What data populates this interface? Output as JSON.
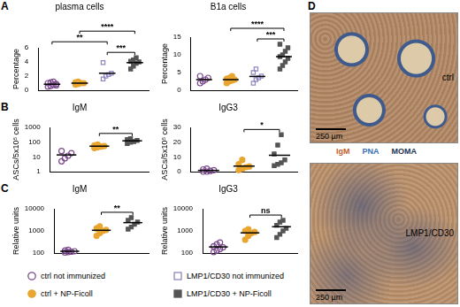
{
  "chart_data": [
    {
      "panel": "A",
      "type": "scatter",
      "title": "plasma cells",
      "y_label": "Percentage",
      "ylim": [
        0,
        6
      ],
      "yticks": [
        0,
        2,
        4,
        6
      ],
      "grid": false,
      "tick_labels": "y",
      "series": [
        {
          "name": "ctrl not immunized",
          "color": "#7b4a8c",
          "marker": "circle-open",
          "values": [
            0.5,
            0.6,
            0.8,
            0.9,
            1.0,
            1.1,
            1.2,
            0.7
          ],
          "mean": 0.85
        },
        {
          "name": "ctrl + NP-Ficoll",
          "color": "#e8a630",
          "marker": "circle",
          "values": [
            0.8,
            0.9,
            1.0,
            1.0,
            1.1,
            1.2
          ],
          "mean": 1.0
        },
        {
          "name": "LMP1/CD30 not immunized",
          "color": "#8e86c0",
          "marker": "square-open",
          "values": [
            1.6,
            2.0,
            2.2,
            2.4,
            3.9
          ],
          "mean": 2.4
        },
        {
          "name": "LMP1/CD30 + NP-Ficoll",
          "color": "#555555",
          "marker": "square",
          "values": [
            3.0,
            3.4,
            3.8,
            4.0,
            4.1,
            4.3,
            4.6
          ],
          "mean": 3.9
        }
      ],
      "annotations": [
        {
          "from": 2,
          "to": 3,
          "label": "***"
        },
        {
          "from": 0,
          "to": 2,
          "label": "**"
        },
        {
          "from": 1,
          "to": 3,
          "label": "****"
        }
      ]
    },
    {
      "panel": "A",
      "type": "scatter",
      "title": "B1a cells",
      "y_label": "Percentage",
      "ylim": [
        0,
        15
      ],
      "yticks": [
        0,
        5,
        10,
        15
      ],
      "grid": false,
      "tick_labels": "y",
      "series": [
        {
          "name": "ctrl not immunized",
          "color": "#7b4a8c",
          "marker": "circle-open",
          "values": [
            2.0,
            2.5,
            3.0,
            3.5,
            4.0
          ],
          "mean": 3.0
        },
        {
          "name": "ctrl + NP-Ficoll",
          "color": "#e8a630",
          "marker": "circle",
          "values": [
            2.0,
            2.5,
            2.8,
            3.0,
            3.2,
            3.5,
            4.0
          ],
          "mean": 3.0
        },
        {
          "name": "LMP1/CD30 not immunized",
          "color": "#8e86c0",
          "marker": "square-open",
          "values": [
            2.0,
            3.0,
            3.5,
            4.0,
            5.0,
            6.0
          ],
          "mean": 3.9
        },
        {
          "name": "LMP1/CD30 + NP-Ficoll",
          "color": "#555555",
          "marker": "square",
          "values": [
            6.0,
            7.0,
            8.0,
            9.0,
            9.5,
            10.0,
            11.0,
            12.0,
            13.0
          ],
          "mean": 9.5
        }
      ],
      "annotations": [
        {
          "from": 2,
          "to": 3,
          "label": "***"
        },
        {
          "from": 1,
          "to": 3,
          "label": "****"
        }
      ]
    },
    {
      "panel": "B",
      "type": "scatter",
      "title": "IgM",
      "y_label": "ASCs/5x10⁵ cells",
      "log": "y",
      "ylim": [
        1,
        1000
      ],
      "yticks": [
        1,
        10,
        100,
        1000
      ],
      "grid": false,
      "tick_labels": "y",
      "series": [
        {
          "name": "ctrl not immunized",
          "color": "#7b4a8c",
          "marker": "circle-open",
          "values": [
            5,
            8,
            12,
            18,
            25
          ],
          "mean": 13.6
        },
        {
          "name": "ctrl + NP-Ficoll",
          "color": "#e8a630",
          "marker": "circle",
          "values": [
            40,
            45,
            50,
            55,
            60,
            70
          ],
          "mean": 53.3
        },
        {
          "name": "LMP1/CD30 + NP-Ficoll",
          "color": "#555555",
          "marker": "square",
          "values": [
            80,
            100,
            110,
            130,
            150,
            170
          ],
          "mean": 123.3
        }
      ],
      "annotations": [
        {
          "from": 1,
          "to": 2,
          "label": "**"
        }
      ]
    },
    {
      "panel": "B",
      "type": "scatter",
      "title": "IgG3",
      "y_label": "ASCs/5x10⁵ cells",
      "ylim": [
        0,
        30
      ],
      "yticks": [
        0,
        10,
        20,
        30
      ],
      "grid": false,
      "tick_labels": "y",
      "series": [
        {
          "name": "ctrl not immunized",
          "color": "#7b4a8c",
          "marker": "circle-open",
          "values": [
            0,
            0,
            0.5,
            1,
            1.5,
            2
          ],
          "mean": 0.83
        },
        {
          "name": "ctrl + NP-Ficoll",
          "color": "#e8a630",
          "marker": "circle",
          "values": [
            1,
            2,
            3,
            3.5,
            5,
            8
          ],
          "mean": 3.75
        },
        {
          "name": "LMP1/CD30 + NP-Ficoll",
          "color": "#555555",
          "marker": "square",
          "values": [
            4,
            5,
            6,
            8,
            12,
            18,
            25
          ],
          "mean": 11.1
        }
      ],
      "annotations": [
        {
          "from": 1,
          "to": 2,
          "label": "*"
        }
      ]
    },
    {
      "panel": "C",
      "type": "scatter",
      "title": "IgM",
      "y_label": "Relative units",
      "log": "y",
      "ylim": [
        100,
        10000
      ],
      "yticks": [
        100,
        1000,
        10000
      ],
      "grid": false,
      "tick_labels": "y",
      "series": [
        {
          "name": "ctrl not immunized",
          "color": "#7b4a8c",
          "marker": "circle-open",
          "values": [
            105,
            110,
            115,
            120,
            130,
            140
          ],
          "mean": 120
        },
        {
          "name": "ctrl + NP-Ficoll",
          "color": "#e8a630",
          "marker": "circle",
          "values": [
            600,
            800,
            1000,
            1100,
            1300,
            1600
          ],
          "mean": 1067
        },
        {
          "name": "LMP1/CD30 + NP-Ficoll",
          "color": "#555555",
          "marker": "square",
          "values": [
            1200,
            1500,
            2000,
            2500,
            3000,
            4000
          ],
          "mean": 2367
        }
      ],
      "annotations": [
        {
          "from": 1,
          "to": 2,
          "label": "**"
        }
      ]
    },
    {
      "panel": "C",
      "type": "scatter",
      "title": "IgG3",
      "y_label": "Relative units",
      "log": "y",
      "ylim": [
        100,
        10000
      ],
      "yticks": [
        100,
        1000,
        10000
      ],
      "grid": false,
      "tick_labels": "y",
      "series": [
        {
          "name": "ctrl not immunized",
          "color": "#7b4a8c",
          "marker": "circle-open",
          "values": [
            110,
            130,
            150,
            180,
            200,
            250,
            300
          ],
          "mean": 189
        },
        {
          "name": "ctrl + NP-Ficoll",
          "color": "#e8a630",
          "marker": "circle",
          "values": [
            400,
            600,
            800,
            900,
            1000,
            1200
          ],
          "mean": 817
        },
        {
          "name": "LMP1/CD30 + NP-Ficoll",
          "color": "#555555",
          "marker": "square",
          "values": [
            500,
            700,
            1000,
            1300,
            1800,
            2500,
            3000
          ],
          "mean": 1543
        }
      ],
      "annotations": [
        {
          "from": 1,
          "to": 2,
          "label": "ns"
        }
      ]
    }
  ],
  "image_panel": {
    "panel": "D",
    "images": [
      {
        "caption": "ctrl",
        "scale_bar": "250 µm"
      },
      {
        "caption": "LMP1/CD30",
        "scale_bar": "250 µm"
      }
    ],
    "stain_legend": [
      {
        "text": "IgM",
        "color": "#c0602e"
      },
      {
        "text": "PNA",
        "color": "#3a6fb0"
      },
      {
        "text": "MOMA",
        "color": "#1f3556"
      }
    ]
  }
}
